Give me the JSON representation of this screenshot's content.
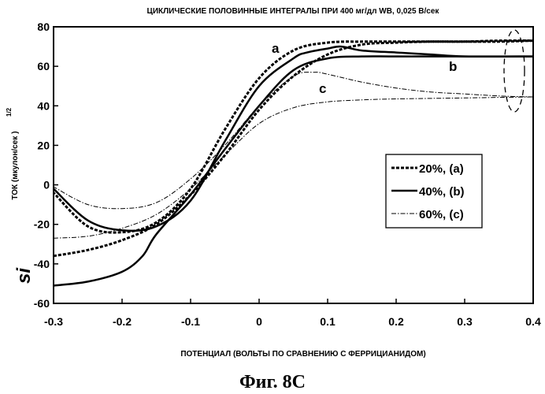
{
  "figure_caption": "Фиг. 8C",
  "chart_data": {
    "type": "line",
    "title": "ЦИКЛИЧЕСКИЕ ПОЛОВИННЫЕ ИНТЕГРАЛЫ  ПРИ  400 мг/дл WB, 0,025 В/сек",
    "xlabel": "ПОТЕНЦИАЛ (ВОЛЬТЫ ПО СРАВНЕНИЮ  С  ФЕРРИЦИАНИДОМ)",
    "ylabel_main": "ТОК (мкулон/сек",
    "ylabel_close": ")",
    "ylabel_sup": "1/2",
    "ylabel_symbol": "si",
    "xlim": [
      -0.3,
      0.4
    ],
    "ylim": [
      -60,
      80
    ],
    "x_ticks": [
      -0.3,
      -0.2,
      -0.1,
      0,
      0.1,
      0.2,
      0.3,
      0.4
    ],
    "x_tick_labels": [
      "-0.3",
      "-0.2",
      "-0.1",
      "0",
      "0.1",
      "0.2",
      "0.3",
      "0.4"
    ],
    "y_ticks": [
      -60,
      -40,
      -20,
      0,
      20,
      40,
      60,
      80
    ],
    "y_tick_labels": [
      "-60",
      "-40",
      "-20",
      "0",
      "20",
      "40",
      "60",
      "80"
    ],
    "grid": false,
    "legend_position": "center-right",
    "series": [
      {
        "name": "20%, (a)",
        "curve_label": "a",
        "style": "dotted",
        "forward": [
          [
            -0.3,
            -36
          ],
          [
            -0.25,
            -33
          ],
          [
            -0.2,
            -28
          ],
          [
            -0.15,
            -20
          ],
          [
            -0.1,
            -5
          ],
          [
            -0.05,
            15
          ],
          [
            0,
            38
          ],
          [
            0.05,
            55
          ],
          [
            0.1,
            66
          ],
          [
            0.15,
            71
          ],
          [
            0.2,
            72
          ],
          [
            0.25,
            72.5
          ],
          [
            0.3,
            72.5
          ],
          [
            0.35,
            73
          ],
          [
            0.4,
            73
          ]
        ],
        "reverse": [
          [
            0.4,
            73
          ],
          [
            0.35,
            72.5
          ],
          [
            0.3,
            72.5
          ],
          [
            0.25,
            72.5
          ],
          [
            0.2,
            72.5
          ],
          [
            0.15,
            72.5
          ],
          [
            0.1,
            72
          ],
          [
            0.05,
            68
          ],
          [
            0,
            54
          ],
          [
            -0.05,
            28
          ],
          [
            -0.1,
            -2
          ],
          [
            -0.15,
            -19
          ],
          [
            -0.2,
            -24
          ],
          [
            -0.25,
            -21
          ],
          [
            -0.3,
            -4
          ]
        ]
      },
      {
        "name": "40%, (b)",
        "curve_label": "b",
        "style": "solid",
        "forward": [
          [
            -0.3,
            -51
          ],
          [
            -0.25,
            -49
          ],
          [
            -0.2,
            -44
          ],
          [
            -0.17,
            -36
          ],
          [
            -0.15,
            -25
          ],
          [
            -0.1,
            -5
          ],
          [
            -0.05,
            18
          ],
          [
            0,
            40
          ],
          [
            0.05,
            58
          ],
          [
            0.1,
            64
          ],
          [
            0.15,
            65
          ],
          [
            0.2,
            65
          ],
          [
            0.3,
            65
          ],
          [
            0.4,
            65
          ]
        ],
        "reverse": [
          [
            0.4,
            65
          ],
          [
            0.3,
            65
          ],
          [
            0.25,
            66
          ],
          [
            0.2,
            67
          ],
          [
            0.15,
            68
          ],
          [
            0.12,
            70
          ],
          [
            0.1,
            69
          ],
          [
            0.07,
            67
          ],
          [
            0.05,
            64
          ],
          [
            0,
            50
          ],
          [
            -0.05,
            22
          ],
          [
            -0.1,
            -8
          ],
          [
            -0.15,
            -21
          ],
          [
            -0.2,
            -23
          ],
          [
            -0.25,
            -18
          ],
          [
            -0.3,
            -2
          ]
        ]
      },
      {
        "name": "60%, (c)",
        "curve_label": "c",
        "style": "dash-dot",
        "forward": [
          [
            -0.3,
            -27
          ],
          [
            -0.25,
            -26
          ],
          [
            -0.2,
            -22
          ],
          [
            -0.15,
            -15
          ],
          [
            -0.1,
            -2
          ],
          [
            -0.05,
            15
          ],
          [
            0,
            31
          ],
          [
            0.05,
            39
          ],
          [
            0.1,
            42
          ],
          [
            0.15,
            43
          ],
          [
            0.2,
            43.5
          ],
          [
            0.3,
            44
          ],
          [
            0.4,
            44.5
          ]
        ],
        "reverse": [
          [
            0.4,
            44.5
          ],
          [
            0.35,
            45
          ],
          [
            0.3,
            46
          ],
          [
            0.25,
            47
          ],
          [
            0.2,
            49
          ],
          [
            0.15,
            52
          ],
          [
            0.1,
            56
          ],
          [
            0.08,
            57
          ],
          [
            0.05,
            55
          ],
          [
            0,
            40
          ],
          [
            -0.05,
            20
          ],
          [
            -0.1,
            3
          ],
          [
            -0.15,
            -9
          ],
          [
            -0.2,
            -12
          ],
          [
            -0.25,
            -10
          ],
          [
            -0.3,
            -1
          ]
        ]
      }
    ]
  }
}
